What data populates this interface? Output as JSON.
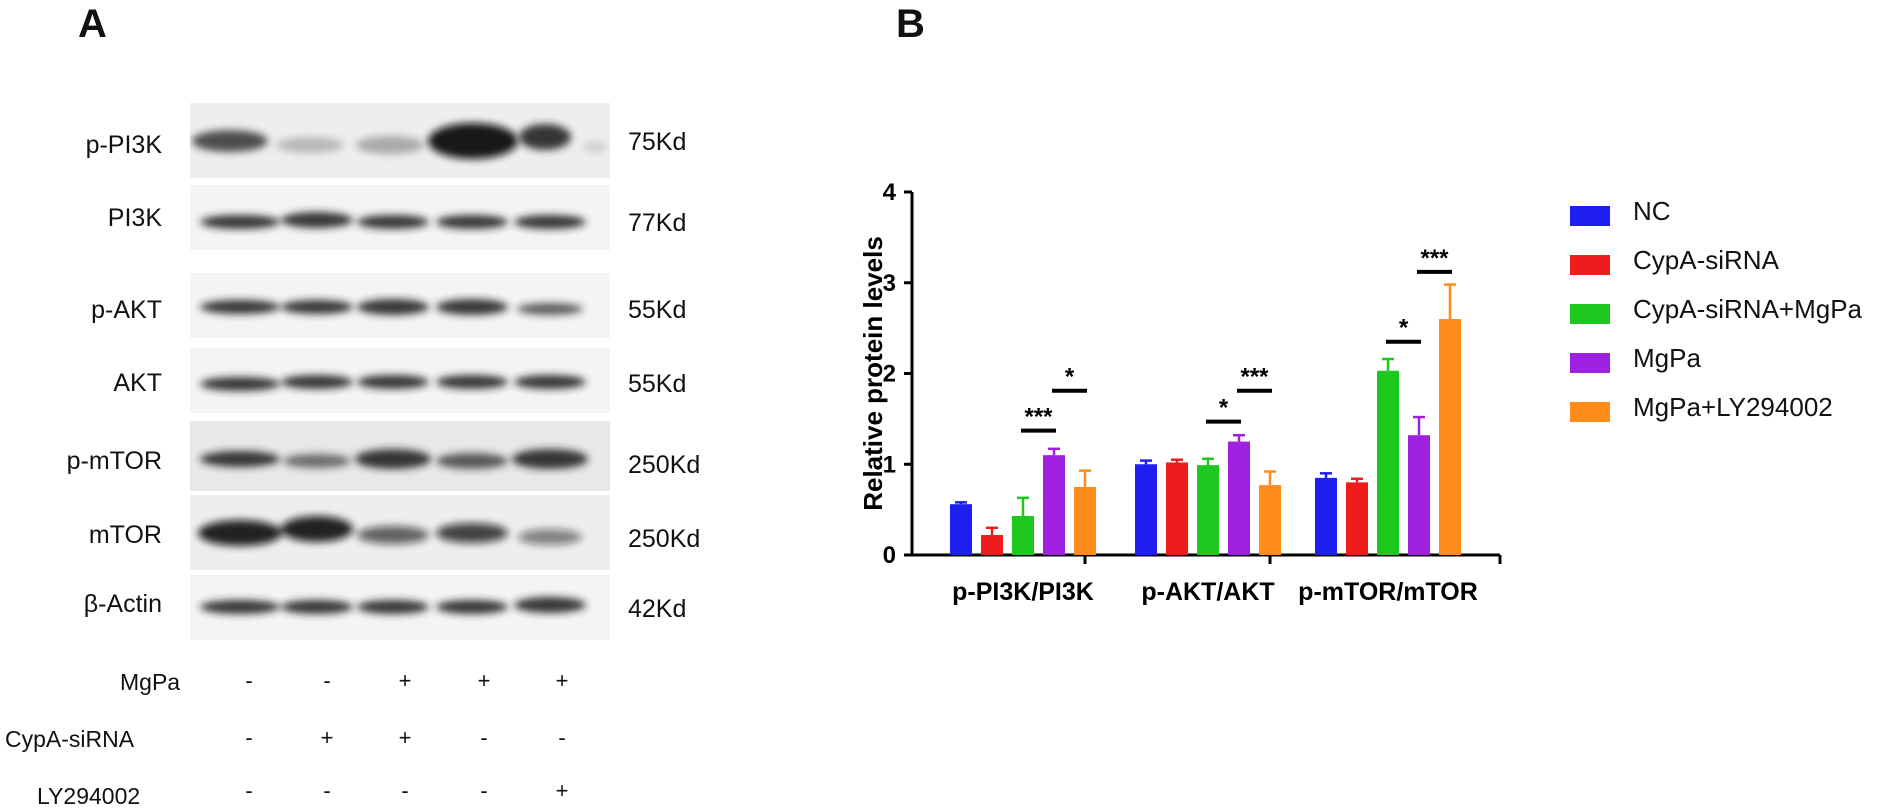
{
  "panels": {
    "a": "A",
    "b": "B"
  },
  "blot": {
    "rows": [
      {
        "label": "p-PI3K",
        "kd": "75Kd"
      },
      {
        "label": "PI3K",
        "kd": "77Kd"
      },
      {
        "label": "p-AKT",
        "kd": "55Kd"
      },
      {
        "label": "AKT",
        "kd": "55Kd"
      },
      {
        "label": "p-mTOR",
        "kd": "250Kd"
      },
      {
        "label": "mTOR",
        "kd": "250Kd"
      },
      {
        "label": "β-Actin",
        "kd": "42Kd"
      }
    ],
    "treatments": [
      {
        "label": "MgPa",
        "signs": [
          "-",
          "-",
          "+",
          "+",
          "+"
        ]
      },
      {
        "label": "CypA-siRNA",
        "signs": [
          "-",
          "+",
          "+",
          "-",
          "-"
        ]
      },
      {
        "label": "LY294002",
        "signs": [
          "-",
          "-",
          "-",
          "-",
          "+"
        ]
      }
    ]
  },
  "chart_data": {
    "type": "bar",
    "title": "",
    "xlabel": "",
    "ylabel": "Relative protein levels",
    "ylim": [
      0,
      4
    ],
    "yticks": [
      0,
      1,
      2,
      3,
      4
    ],
    "categories": [
      "p-PI3K/PI3K",
      "p-AKT/AKT",
      "p-mTOR/mTOR"
    ],
    "legend_position": "right",
    "series": [
      {
        "name": "NC",
        "color": "#1f1ff0",
        "values": [
          0.56,
          1.0,
          0.85
        ],
        "errors": [
          0.02,
          0.04,
          0.05
        ]
      },
      {
        "name": "CypA-siRNA",
        "color": "#ee1c1c",
        "values": [
          0.22,
          1.02,
          0.8
        ],
        "errors": [
          0.08,
          0.03,
          0.04
        ]
      },
      {
        "name": "CypA-siRNA+MgPa",
        "color": "#1ec81e",
        "values": [
          0.43,
          0.99,
          2.03
        ],
        "errors": [
          0.2,
          0.07,
          0.13
        ]
      },
      {
        "name": "MgPa",
        "color": "#a020e0",
        "values": [
          1.1,
          1.25,
          1.32
        ],
        "errors": [
          0.07,
          0.07,
          0.2
        ]
      },
      {
        "name": "MgPa+LY294002",
        "color": "#ff8c1a",
        "values": [
          0.75,
          0.77,
          2.6
        ],
        "errors": [
          0.18,
          0.15,
          0.38
        ]
      }
    ],
    "significance": [
      {
        "category": 0,
        "from": 2,
        "to": 3,
        "label": "***",
        "y": 1.37
      },
      {
        "category": 0,
        "from": 3,
        "to": 4,
        "label": "*",
        "y": 1.81
      },
      {
        "category": 1,
        "from": 2,
        "to": 3,
        "label": "*",
        "y": 1.47
      },
      {
        "category": 1,
        "from": 3,
        "to": 4,
        "label": "***",
        "y": 1.81
      },
      {
        "category": 2,
        "from": 2,
        "to": 3,
        "label": "*",
        "y": 2.35
      },
      {
        "category": 2,
        "from": 3,
        "to": 4,
        "label": "***",
        "y": 3.12
      }
    ]
  }
}
